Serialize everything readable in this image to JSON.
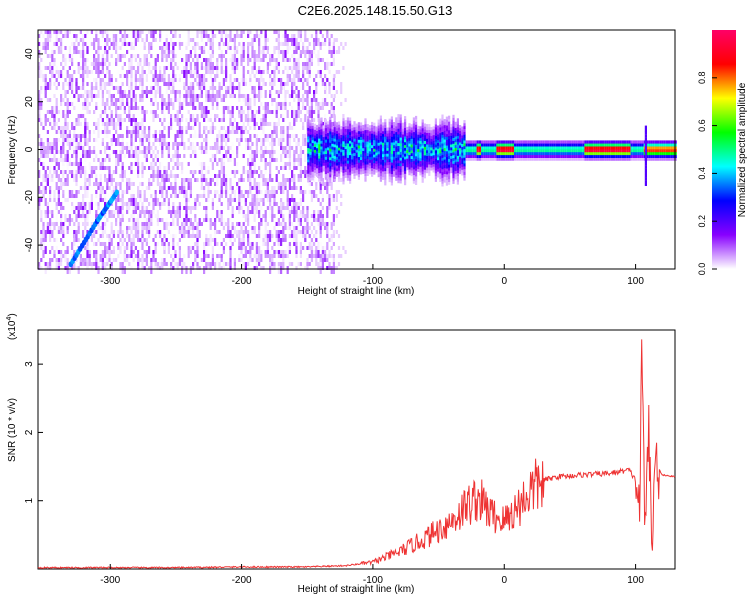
{
  "title": "C2E6.2025.148.15.50.G13",
  "chart_data": [
    {
      "type": "heatmap",
      "title": "",
      "xlabel": "Height of straight line (km)",
      "ylabel": "Frequency (Hz)",
      "xlim": [
        -355,
        130
      ],
      "ylim": [
        -50,
        50
      ],
      "xticks": [
        -300,
        -200,
        -100,
        0,
        100
      ],
      "yticks": [
        -40,
        -20,
        0,
        20,
        40
      ],
      "colorbar": {
        "label": "Normalized spectral amplitude",
        "range": [
          0,
          1
        ],
        "ticks": [
          0.0,
          0.2,
          0.4,
          0.6,
          0.8
        ],
        "tick_labels": [
          "0.0",
          "0.2",
          "0.4",
          "0.6",
          "0.8"
        ],
        "colormap": [
          "#ffffff",
          "#8800ff",
          "#0000ff",
          "#00ffff",
          "#00ff00",
          "#ffff00",
          "#ff0000",
          "#ff0066"
        ]
      },
      "features": [
        {
          "name": "noise-region",
          "x_range": [
            -355,
            -130
          ],
          "y_range": [
            -50,
            50
          ],
          "amplitude": [
            0.0,
            0.15
          ]
        },
        {
          "name": "ramp",
          "x": [
            -330,
            -310,
            -295
          ],
          "y": [
            -48,
            -30,
            -18
          ],
          "amplitude": 0.3
        },
        {
          "name": "central-band",
          "x_range": [
            -150,
            130
          ],
          "y_center": 0,
          "amplitude_peak": 1.0
        }
      ]
    },
    {
      "type": "line",
      "title": "",
      "xlabel": "Height of straight line (km)",
      "ylabel": "SNR (10 * v/v)",
      "scale_label": "(x10",
      "scale_exp": "4",
      "scale_close": ")",
      "xlim": [
        -355,
        130
      ],
      "ylim": [
        0,
        3.5
      ],
      "xticks": [
        -300,
        -200,
        -100,
        0,
        100
      ],
      "yticks": [
        1,
        2,
        3
      ],
      "color": "#ee3333",
      "x": [
        -355,
        -300,
        -250,
        -200,
        -150,
        -120,
        -100,
        -80,
        -60,
        -40,
        -30,
        -20,
        -10,
        0,
        10,
        20,
        30,
        40,
        60,
        80,
        95,
        100,
        103,
        105,
        107,
        110,
        112,
        115,
        120,
        130
      ],
      "y": [
        0.02,
        0.02,
        0.02,
        0.03,
        0.03,
        0.05,
        0.1,
        0.25,
        0.45,
        0.7,
        0.9,
        1.05,
        0.8,
        0.7,
        0.9,
        1.15,
        1.3,
        1.35,
        1.38,
        1.4,
        1.45,
        1.3,
        0.9,
        3.3,
        0.3,
        2.4,
        0.2,
        1.6,
        1.38,
        1.35
      ]
    }
  ]
}
